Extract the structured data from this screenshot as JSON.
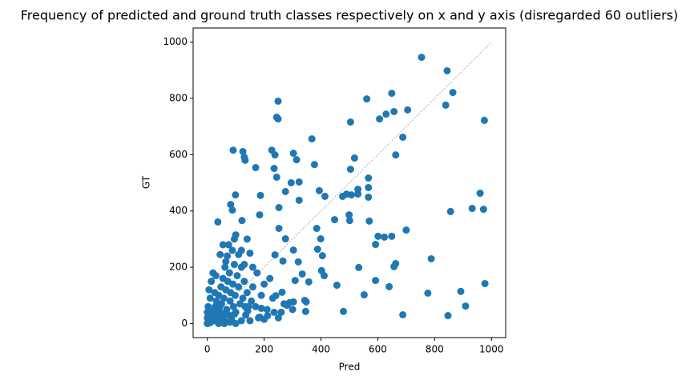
{
  "chart_data": {
    "type": "scatter",
    "title": "Frequency of predicted and ground truth classes respectively on x and y axis (disregarded 60 outliers)",
    "x_label": "Pred",
    "y_label": "GT",
    "color": "#1f77b4",
    "xlim": [
      -50,
      1050
    ],
    "ylim": [
      -50,
      1050
    ],
    "xticks": [
      0,
      200,
      400,
      600,
      800,
      1000
    ],
    "yticks": [
      0,
      200,
      400,
      600,
      800,
      1000
    ],
    "reference_line": {
      "x": [
        0,
        1000
      ],
      "y": [
        0,
        1000
      ],
      "color": "#999999"
    },
    "x": [
      754,
      844,
      864,
      649,
      561,
      249,
      657,
      705,
      629,
      606,
      839,
      975,
      249,
      244,
      504,
      688,
      368,
      91,
      125,
      227,
      238,
      303,
      130,
      133,
      518,
      314,
      663,
      377,
      170,
      235,
      504,
      567,
      244,
      295,
      323,
      530,
      567,
      275,
      394,
      187,
      99,
      567,
      476,
      490,
      507,
      530,
      414,
      960,
      323,
      82,
      88,
      37,
      122,
      184,
      252,
      499,
      501,
      448,
      570,
      932,
      972,
      856,
      252,
      385,
      700,
      592,
      623,
      649,
      601,
      399,
      275,
      303,
      388,
      405,
      238,
      266,
      788,
      663,
      657,
      533,
      320,
      402,
      411,
      334,
      357,
      592,
      640,
      456,
      977,
      776,
      552,
      241,
      263,
      309,
      303,
      343,
      348,
      289,
      892,
      909,
      479,
      688,
      847,
      346,
      235,
      212,
      280,
      190,
      142,
      133,
      96,
      62,
      184,
      0,
      2,
      5,
      8,
      10,
      12,
      15,
      18,
      20,
      22,
      25,
      28,
      30,
      32,
      35,
      38,
      40,
      42,
      45,
      48,
      50,
      52,
      55,
      58,
      60,
      62,
      65,
      68,
      70,
      72,
      75,
      78,
      80,
      82,
      85,
      88,
      90,
      92,
      95,
      98,
      100,
      105,
      110,
      115,
      120,
      125,
      130,
      135,
      140,
      145,
      150,
      155,
      160,
      170,
      175,
      180,
      190,
      200,
      210,
      220,
      230,
      3,
      6,
      10,
      14,
      20,
      26,
      30,
      45,
      55,
      65,
      75,
      100,
      110,
      120,
      95,
      130,
      160,
      140,
      0,
      0,
      5,
      40,
      60,
      80,
      100,
      120,
      150,
      200,
      250,
      260,
      300,
      270
    ],
    "y": [
      946,
      898,
      821,
      818,
      798,
      790,
      753,
      759,
      744,
      727,
      776,
      722,
      727,
      733,
      716,
      662,
      656,
      616,
      611,
      616,
      599,
      605,
      591,
      580,
      588,
      582,
      599,
      565,
      554,
      551,
      548,
      517,
      520,
      500,
      503,
      477,
      483,
      469,
      472,
      455,
      457,
      449,
      452,
      460,
      457,
      460,
      452,
      463,
      438,
      423,
      403,
      361,
      366,
      386,
      412,
      386,
      366,
      369,
      364,
      409,
      406,
      398,
      338,
      338,
      332,
      281,
      307,
      310,
      310,
      301,
      301,
      261,
      264,
      241,
      244,
      222,
      230,
      213,
      202,
      199,
      219,
      188,
      170,
      176,
      148,
      153,
      131,
      136,
      142,
      108,
      102,
      99,
      111,
      153,
      77,
      82,
      77,
      74,
      114,
      62,
      43,
      31,
      28,
      43,
      40,
      28,
      65,
      54,
      45,
      60,
      34,
      34,
      23,
      0,
      5,
      2,
      12,
      3,
      20,
      8,
      30,
      15,
      45,
      10,
      60,
      25,
      80,
      40,
      5,
      100,
      55,
      20,
      130,
      70,
      35,
      160,
      90,
      10,
      200,
      120,
      50,
      240,
      150,
      30,
      180,
      80,
      110,
      15,
      260,
      140,
      60,
      210,
      100,
      40,
      170,
      130,
      70,
      200,
      90,
      150,
      30,
      110,
      60,
      250,
      80,
      130,
      60,
      180,
      20,
      100,
      140,
      50,
      160,
      90,
      60,
      120,
      90,
      150,
      180,
      110,
      170,
      245,
      280,
      220,
      280,
      315,
      245,
      260,
      300,
      210,
      200,
      300,
      20,
      40,
      35,
      0,
      0,
      5,
      0,
      10,
      10,
      15,
      20,
      40,
      50,
      70
    ]
  }
}
